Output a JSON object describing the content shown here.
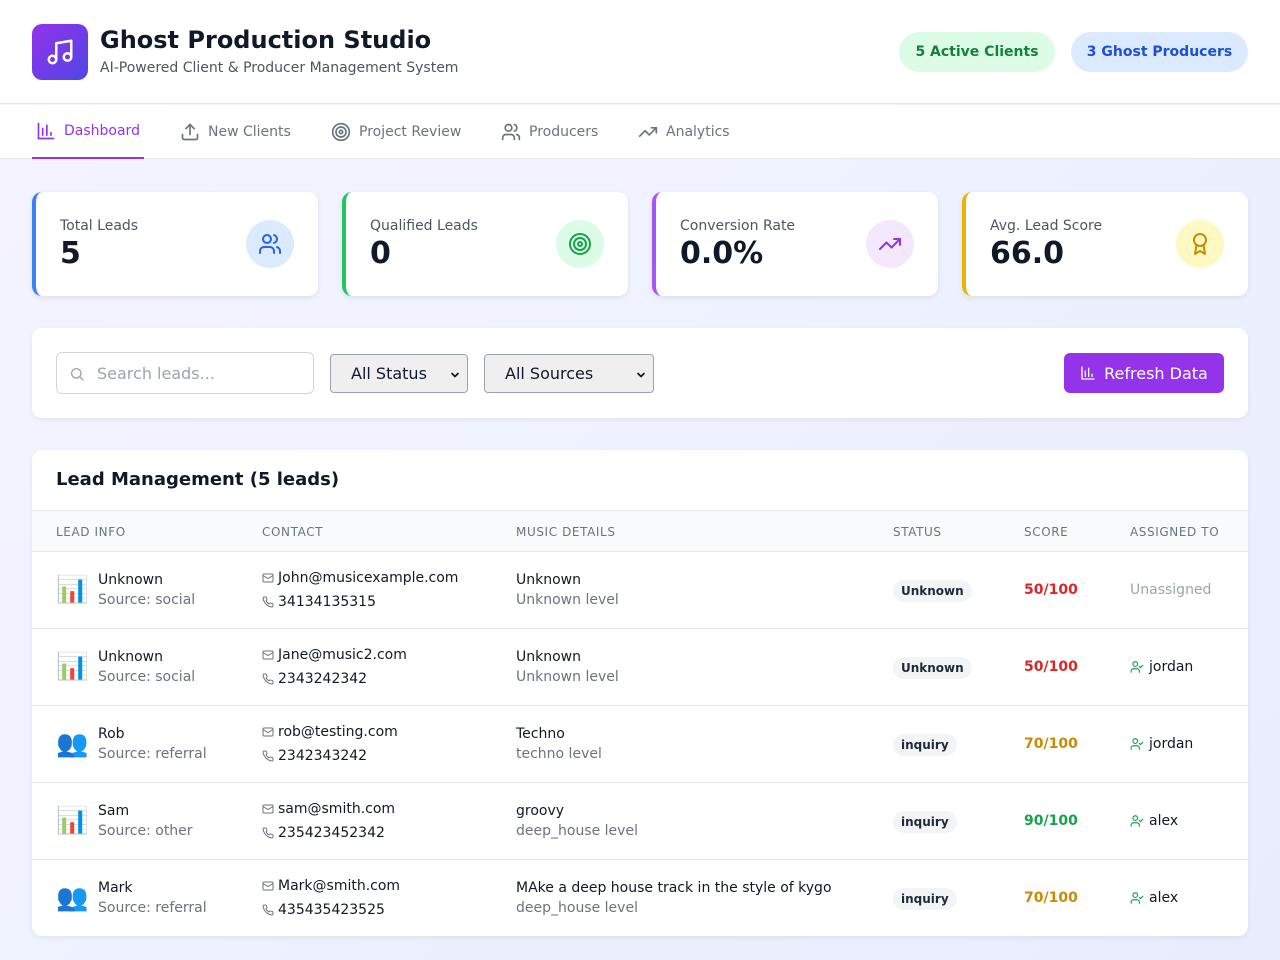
{
  "header": {
    "title": "Ghost Production Studio",
    "subtitle": "AI-Powered Client & Producer Management System",
    "logo_icon": "music-note-icon",
    "active_clients": "5 Active Clients",
    "ghost_producers": "3 Ghost Producers"
  },
  "nav": {
    "tabs": [
      {
        "label": "Dashboard",
        "icon": "bar-chart-icon",
        "active": true
      },
      {
        "label": "New Clients",
        "icon": "upload-icon",
        "active": false
      },
      {
        "label": "Project Review",
        "icon": "target-icon",
        "active": false
      },
      {
        "label": "Producers",
        "icon": "users-icon",
        "active": false
      },
      {
        "label": "Analytics",
        "icon": "trending-up-icon",
        "active": false
      }
    ]
  },
  "stats": [
    {
      "label": "Total Leads",
      "value": "5",
      "icon": "users-icon",
      "accent": "#3b82f6"
    },
    {
      "label": "Qualified Leads",
      "value": "0",
      "icon": "target-icon",
      "accent": "#22c55e"
    },
    {
      "label": "Conversion Rate",
      "value": "0.0%",
      "icon": "trending-up-icon",
      "accent": "#a855f7"
    },
    {
      "label": "Avg. Lead Score",
      "value": "66.0",
      "icon": "award-icon",
      "accent": "#eab308"
    }
  ],
  "filters": {
    "search_placeholder": "Search leads...",
    "status_selected": "All Status",
    "source_selected": "All Sources",
    "refresh_label": "Refresh Data"
  },
  "table": {
    "title": "Lead Management (5 leads)",
    "columns": [
      "LEAD INFO",
      "CONTACT",
      "MUSIC DETAILS",
      "STATUS",
      "SCORE",
      "ASSIGNED TO"
    ],
    "rows": [
      {
        "emoji": "📊",
        "name": "Unknown",
        "source": "Source: social",
        "email": "John@musicexample.com",
        "phone": "34134135315",
        "genre": "Unknown",
        "level": "Unknown level",
        "status": "Unknown",
        "score": "50/100",
        "score_color": "#dc2626",
        "assigned": "Unassigned",
        "assigned_set": false
      },
      {
        "emoji": "📊",
        "name": "Unknown",
        "source": "Source: social",
        "email": "Jane@music2.com",
        "phone": "2343242342",
        "genre": "Unknown",
        "level": "Unknown level",
        "status": "Unknown",
        "score": "50/100",
        "score_color": "#dc2626",
        "assigned": "jordan",
        "assigned_set": true
      },
      {
        "emoji": "👥",
        "name": "Rob",
        "source": "Source: referral",
        "email": "rob@testing.com",
        "phone": "2342343242",
        "genre": "Techno",
        "level": "techno level",
        "status": "inquiry",
        "score": "70/100",
        "score_color": "#ca8a04",
        "assigned": "jordan",
        "assigned_set": true
      },
      {
        "emoji": "📊",
        "name": "Sam",
        "source": "Source: other",
        "email": "sam@smith.com",
        "phone": "235423452342",
        "genre": "groovy",
        "level": "deep_house level",
        "status": "inquiry",
        "score": "90/100",
        "score_color": "#16a34a",
        "assigned": "alex",
        "assigned_set": true
      },
      {
        "emoji": "👥",
        "name": "Mark",
        "source": "Source: referral",
        "email": "Mark@smith.com",
        "phone": "435435423525",
        "genre": "MAke a deep house track in the style of kygo",
        "level": "deep_house level",
        "status": "inquiry",
        "score": "70/100",
        "score_color": "#ca8a04",
        "assigned": "alex",
        "assigned_set": true
      }
    ]
  }
}
